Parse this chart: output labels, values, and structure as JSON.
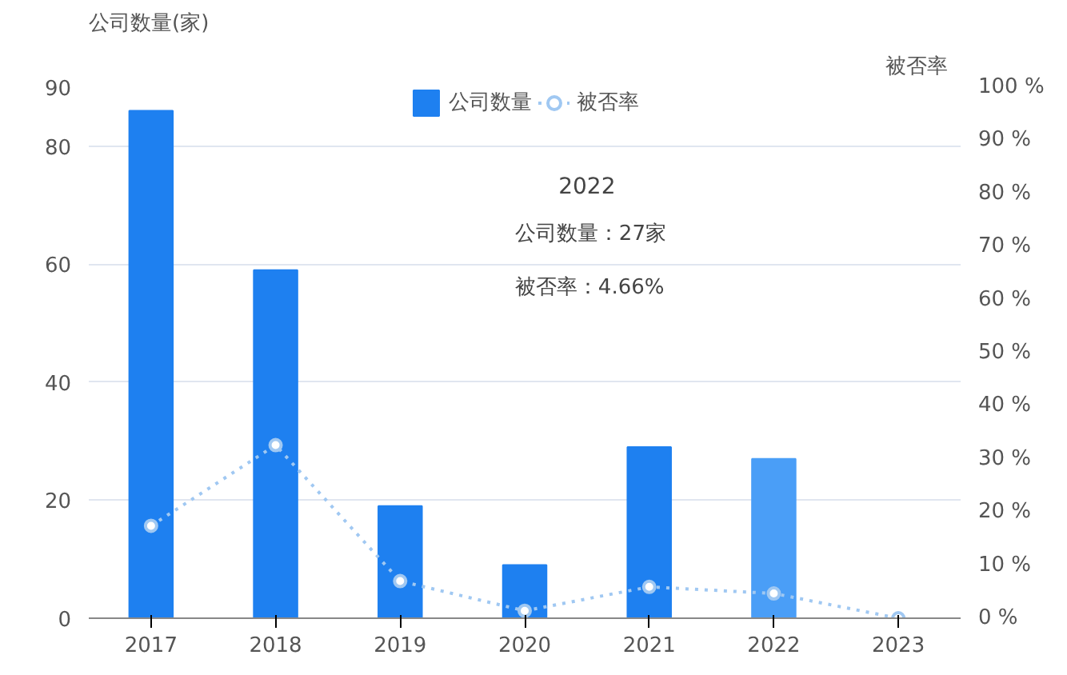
{
  "chart_data": {
    "type": "bar",
    "categories": [
      "2017",
      "2018",
      "2019",
      "2020",
      "2021",
      "2022",
      "2023"
    ],
    "ylabel": "公司数量(家)",
    "y2label": "被否率",
    "series": [
      {
        "name": "公司数量",
        "colors": [
          "#1e80f0",
          "#1e80f0",
          "#1e80f0",
          "#1e80f0",
          "#1e80f0",
          "#4a9ef7",
          "#1e80f0"
        ],
        "values": [
          86,
          59,
          19,
          9,
          29,
          27,
          0
        ]
      },
      {
        "name": "被否率",
        "type": "line",
        "axis": "y2",
        "color": "#a0c8f2",
        "marker": "circle",
        "line_style": "dotted",
        "values": [
          17.4,
          32.6,
          7,
          1.4,
          5.9,
          4.66,
          0
        ]
      }
    ],
    "ylim": [
      0,
      90
    ],
    "yticks": [
      0,
      20,
      40,
      60,
      80,
      90
    ],
    "y2lim": [
      0,
      100
    ],
    "y2ticks": [
      {
        "value": 0,
        "label": "0 %"
      },
      {
        "value": 10,
        "label": "10 %"
      },
      {
        "value": 20,
        "label": "20 %"
      },
      {
        "value": 30,
        "label": "30 %"
      },
      {
        "value": 40,
        "label": "40 %"
      },
      {
        "value": 50,
        "label": "50 %"
      },
      {
        "value": 60,
        "label": "60 %"
      },
      {
        "value": 70,
        "label": "70 %"
      },
      {
        "value": 80,
        "label": "80 %"
      },
      {
        "value": 90,
        "label": "90 %"
      },
      {
        "value": 100,
        "label": "100 %"
      }
    ],
    "grid": "y",
    "legend": "top",
    "annotations": [
      "2022",
      "公司数量：27家",
      "被否率：4.66%"
    ]
  }
}
